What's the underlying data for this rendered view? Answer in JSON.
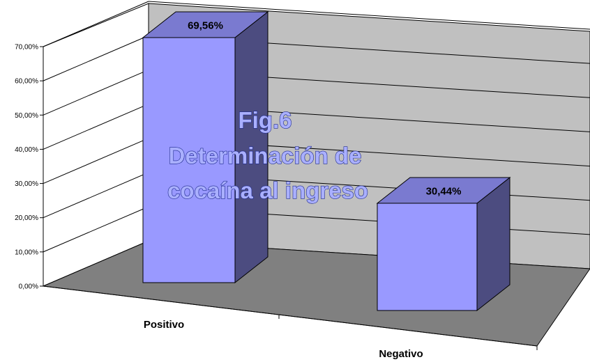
{
  "chart_data": {
    "type": "bar",
    "title": [
      "Fig.6",
      "Determinación de",
      "cocaína al ingreso"
    ],
    "categories": [
      "Positivo",
      "Negativo"
    ],
    "values": [
      69.56,
      30.44
    ],
    "data_labels": [
      "69,56%",
      "30,44%"
    ],
    "y_ticks": [
      "0,00%",
      "10,00%",
      "20,00%",
      "30,00%",
      "40,00%",
      "50,00%",
      "60,00%",
      "70,00%"
    ],
    "ylim": [
      0,
      70
    ],
    "grid": true,
    "legend": "none",
    "colors": {
      "bar_front": "#9999ff",
      "bar_top": "#7a7ad0",
      "bar_side": "#4c4c80",
      "back_wall": "#c0c0c0",
      "floor": "#808080",
      "title_fill": "#aab0ff",
      "title_stroke": "#1f2a8c"
    }
  }
}
